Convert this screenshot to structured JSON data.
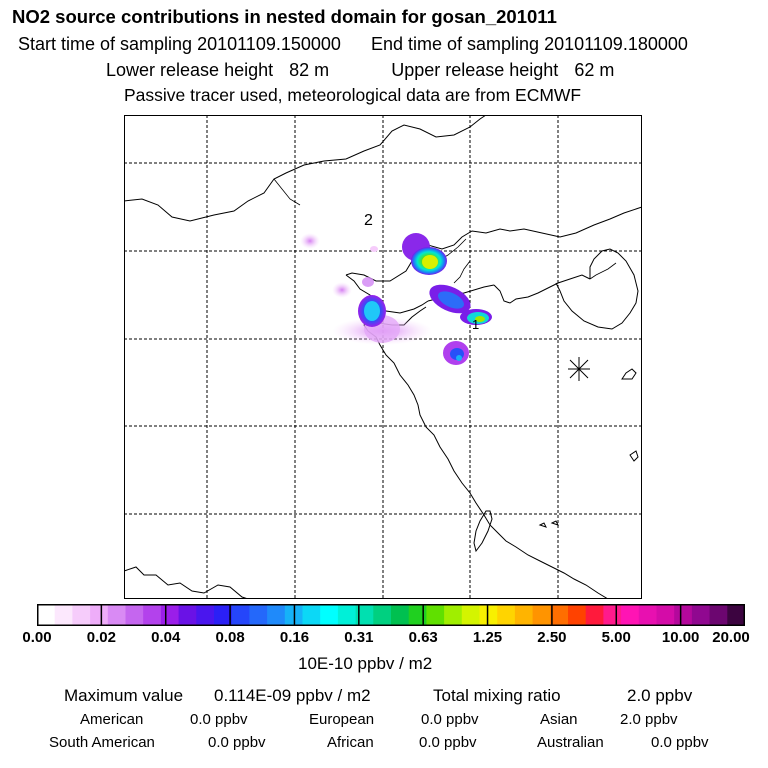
{
  "title": "NO2 source contributions in nested domain for gosan_201011",
  "start_label": "Start time of sampling",
  "start_value": "20101109.150000",
  "end_label": "End time of sampling",
  "end_value": "20101109.180000",
  "lower_label": "Lower release height",
  "lower_value": "82 m",
  "upper_label": "Upper release height",
  "upper_value": "62 m",
  "note": "Passive tracer used, meteorological data are from ECMWF",
  "map": {
    "label_2": "2",
    "label_1": "1"
  },
  "colorbar": {
    "labels": [
      "0.00",
      "0.02",
      "0.04",
      "0.08",
      "0.16",
      "0.31",
      "0.63",
      "1.25",
      "2.50",
      "5.00",
      "10.00",
      "20.00"
    ],
    "colors": [
      "#ffffff",
      "#fce8fd",
      "#f6ccfb",
      "#eeadf9",
      "#d98af4",
      "#c566ef",
      "#b342ec",
      "#9b1ee9",
      "#6a12e6",
      "#4a16ee",
      "#2b20f6",
      "#2546fa",
      "#2468fa",
      "#1f8afa",
      "#16b2f8",
      "#0cd8f6",
      "#00ffff",
      "#00f0d8",
      "#00e0b0",
      "#00d080",
      "#00c050",
      "#20d020",
      "#60e000",
      "#a0ee00",
      "#d4f400",
      "#f8f000",
      "#ffd400",
      "#ffb400",
      "#ff9400",
      "#ff6e00",
      "#ff4200",
      "#ff1a3c",
      "#ff1a8c",
      "#ff14b4",
      "#e810b0",
      "#d40ca8",
      "#b4089c",
      "#900890",
      "#6c0670",
      "#3c0440"
    ],
    "unit": "10E-10 ppbv / m2"
  },
  "summary": {
    "max_label": "Maximum value",
    "max_value": "0.114E-09 ppbv / m2",
    "total_label": "Total mixing ratio",
    "total_value": "2.0 ppbv",
    "regions": [
      {
        "name": "American",
        "value": "0.0 ppbv"
      },
      {
        "name": "European",
        "value": "0.0 ppbv"
      },
      {
        "name": "Asian",
        "value": "2.0 ppbv"
      },
      {
        "name": "South American",
        "value": "0.0 ppbv"
      },
      {
        "name": "African",
        "value": "0.0 ppbv"
      },
      {
        "name": "Australian",
        "value": "0.0 ppbv"
      }
    ]
  }
}
